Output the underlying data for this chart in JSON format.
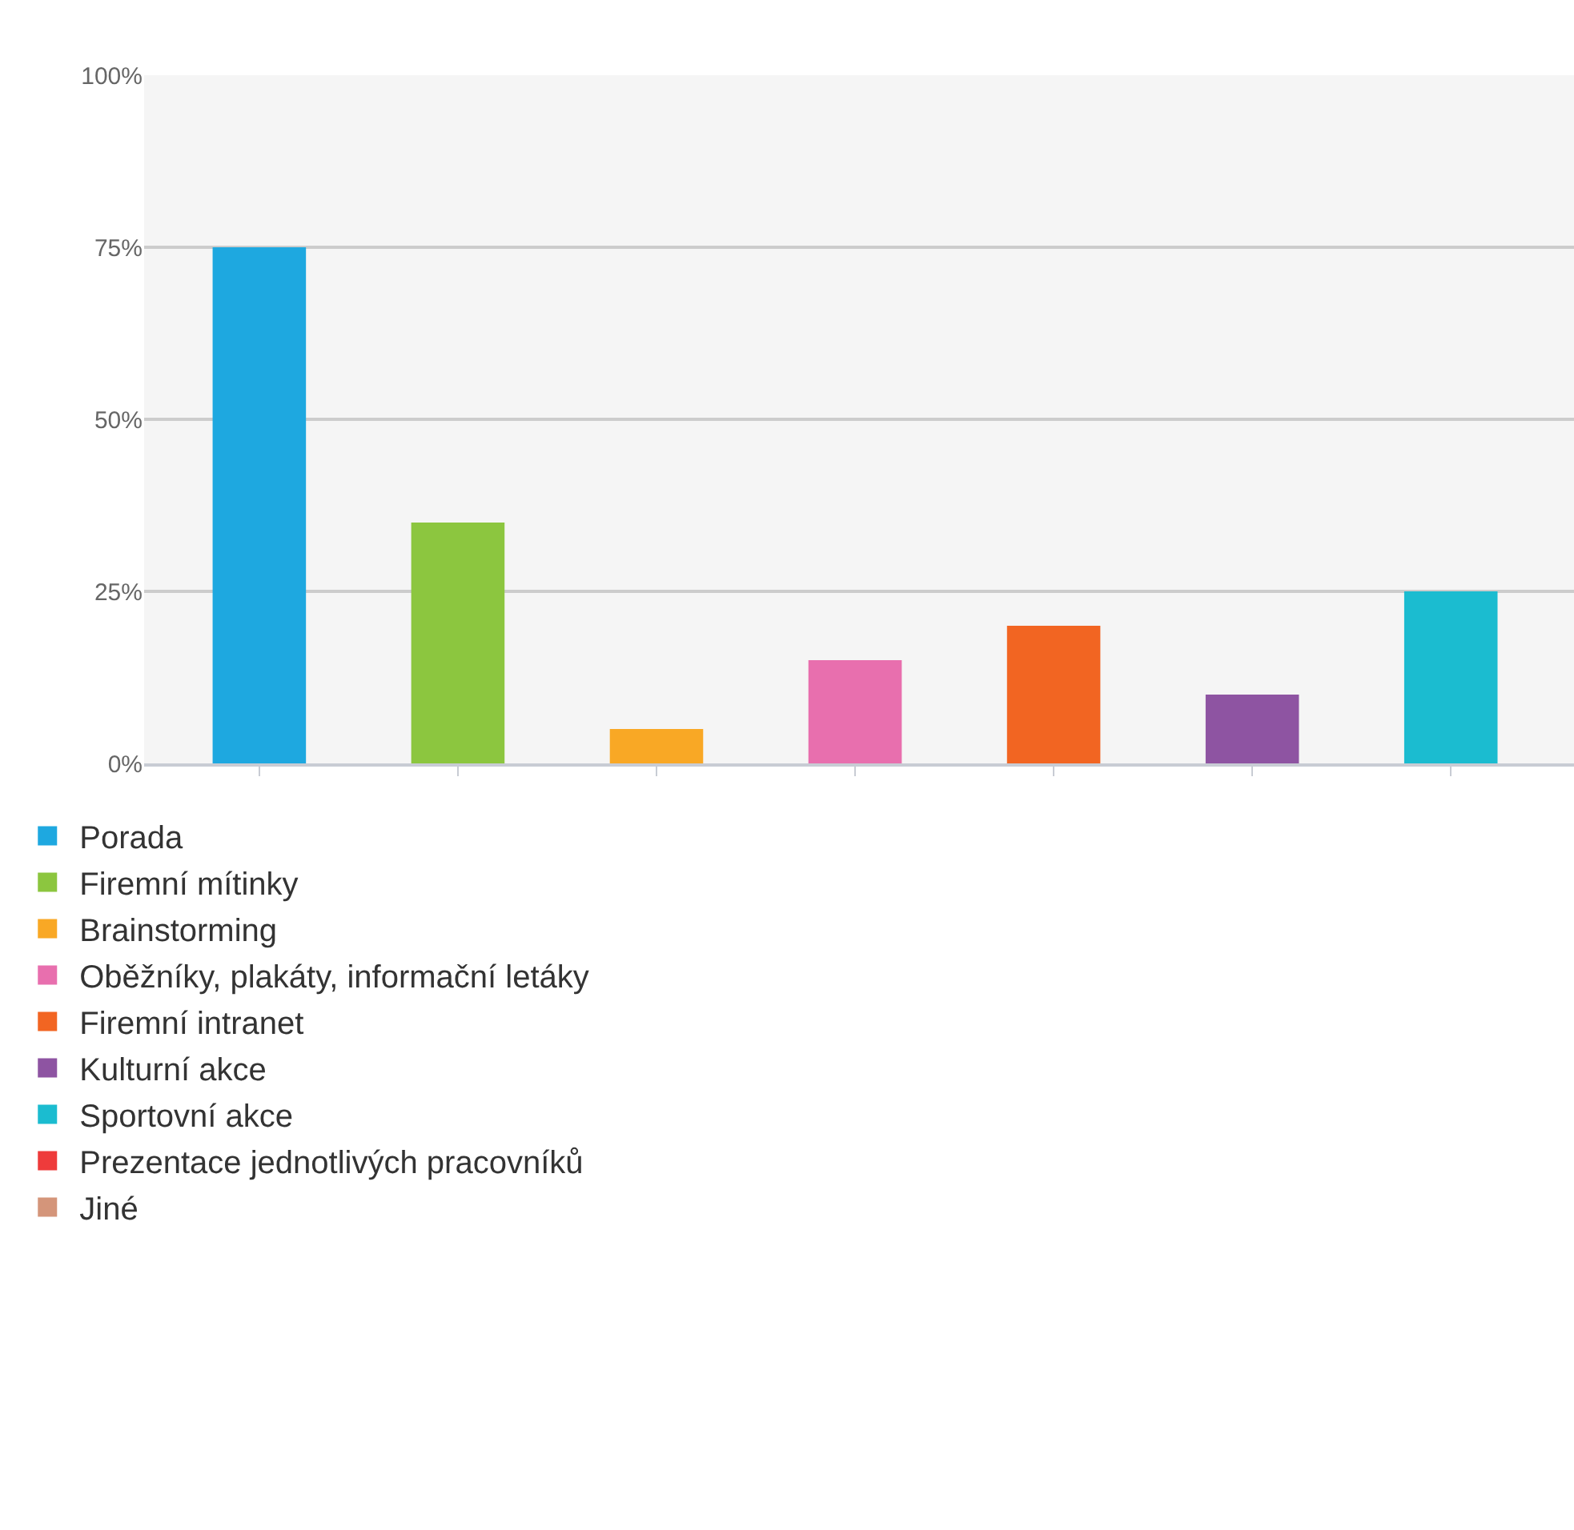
{
  "chart_data": {
    "type": "bar",
    "categories": [
      null,
      null,
      null,
      null,
      null,
      null,
      null
    ],
    "series": [
      {
        "name": "Porada",
        "color": "#1ea8e0",
        "values": [
          75,
          null,
          null,
          null,
          null,
          null,
          null
        ]
      },
      {
        "name": "Firemní mítinky",
        "color": "#8cc63f",
        "values": [
          null,
          35,
          null,
          null,
          null,
          null,
          null
        ]
      },
      {
        "name": "Brainstorming",
        "color": "#f9a825",
        "values": [
          null,
          null,
          5,
          null,
          null,
          null,
          null
        ]
      },
      {
        "name": "Oběžníky, plakáty, informační letáky",
        "color": "#e86fae",
        "values": [
          null,
          null,
          null,
          15,
          null,
          null,
          null
        ]
      },
      {
        "name": "Firemní intranet",
        "color": "#f26522",
        "values": [
          null,
          null,
          null,
          null,
          20,
          null,
          null
        ]
      },
      {
        "name": "Kulturní akce",
        "color": "#8e54a2",
        "values": [
          null,
          null,
          null,
          null,
          null,
          10,
          null
        ]
      },
      {
        "name": "Sportovní akce",
        "color": "#1bbcd0",
        "values": [
          null,
          null,
          null,
          null,
          null,
          null,
          25
        ]
      },
      {
        "name": "Prezentace jednotlivých pracovníků",
        "color": "#ee3b3b",
        "values": [
          null,
          null,
          null,
          null,
          null,
          null,
          null
        ]
      },
      {
        "name": "Jiné",
        "color": "#d4957a",
        "values": [
          null,
          null,
          null,
          null,
          null,
          null,
          null
        ]
      }
    ],
    "ylim": [
      0,
      100
    ],
    "yticks": [
      {
        "value": 0,
        "label": "0%"
      },
      {
        "value": 25,
        "label": "25%"
      },
      {
        "value": 50,
        "label": "50%"
      },
      {
        "value": 75,
        "label": "75%"
      },
      {
        "value": 100,
        "label": "100%"
      }
    ],
    "grid": "y",
    "legend": "bottom"
  }
}
